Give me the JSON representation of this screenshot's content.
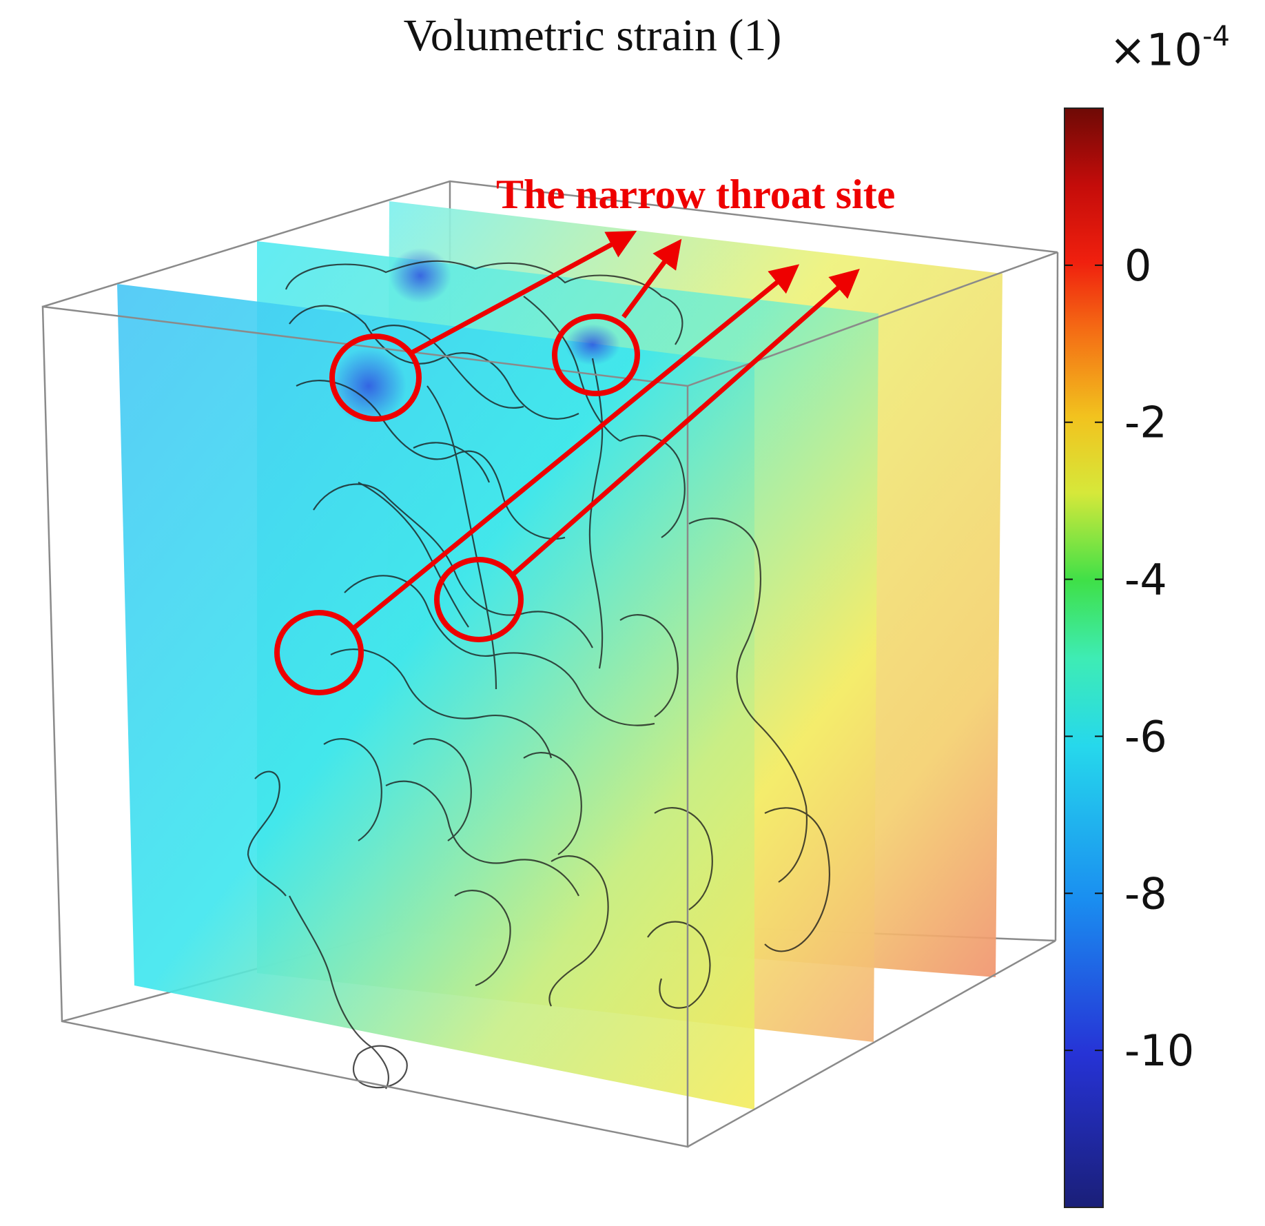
{
  "title": "Volumetric strain (1)",
  "colorbar": {
    "multiplier_base": "×10",
    "multiplier_exponent": "-4",
    "ticks": [
      {
        "value": 0,
        "label": "0"
      },
      {
        "value": -2,
        "label": "-2"
      },
      {
        "value": -4,
        "label": "-4"
      },
      {
        "value": -6,
        "label": "-6"
      },
      {
        "value": -8,
        "label": "-8"
      },
      {
        "value": -10,
        "label": "-10"
      }
    ],
    "range": [
      -12,
      2
    ],
    "colormap": "rainbow (dark blue → cyan → green → yellow → red → dark red)"
  },
  "annotation": {
    "text": "The narrow throat site",
    "color": "#ee0000",
    "highlighted_sites": 4
  },
  "colors": {
    "annotation_red": "#ee0000",
    "box_edge": "#8a8a8a",
    "pore_outline": "#1a1a1a"
  }
}
